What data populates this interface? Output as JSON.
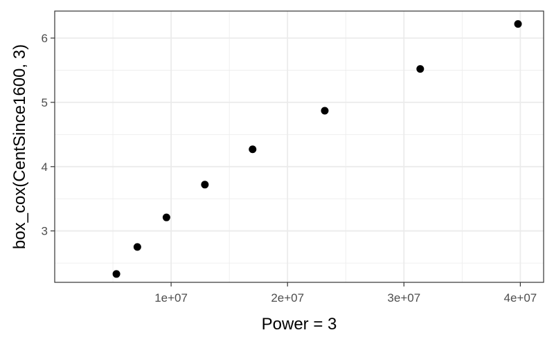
{
  "chart_data": {
    "type": "scatter",
    "xlabel": "Power = 3",
    "ylabel": "box_cox(CentSince1600, 3)",
    "xlim": [
      0,
      42000000
    ],
    "ylim": [
      2.2,
      6.42
    ],
    "grid": true,
    "x_ticks": [
      {
        "value": 10000000,
        "label": "1e+07"
      },
      {
        "value": 20000000,
        "label": "2e+07"
      },
      {
        "value": 30000000,
        "label": "3e+07"
      },
      {
        "value": 40000000,
        "label": "4e+07"
      }
    ],
    "y_ticks": [
      {
        "value": 3,
        "label": "3"
      },
      {
        "value": 4,
        "label": "4"
      },
      {
        "value": 5,
        "label": "5"
      },
      {
        "value": 6,
        "label": "6"
      }
    ],
    "points": [
      {
        "x": 5300000,
        "y": 2.33
      },
      {
        "x": 7100000,
        "y": 2.75
      },
      {
        "x": 9600000,
        "y": 3.21
      },
      {
        "x": 12900000,
        "y": 3.72
      },
      {
        "x": 17000000,
        "y": 4.27
      },
      {
        "x": 23200000,
        "y": 4.87
      },
      {
        "x": 31400000,
        "y": 5.52
      },
      {
        "x": 39800000,
        "y": 6.22
      }
    ],
    "point_color": "#000000",
    "grid_color": "#ebebeb",
    "panel_border_color": "#333333"
  }
}
